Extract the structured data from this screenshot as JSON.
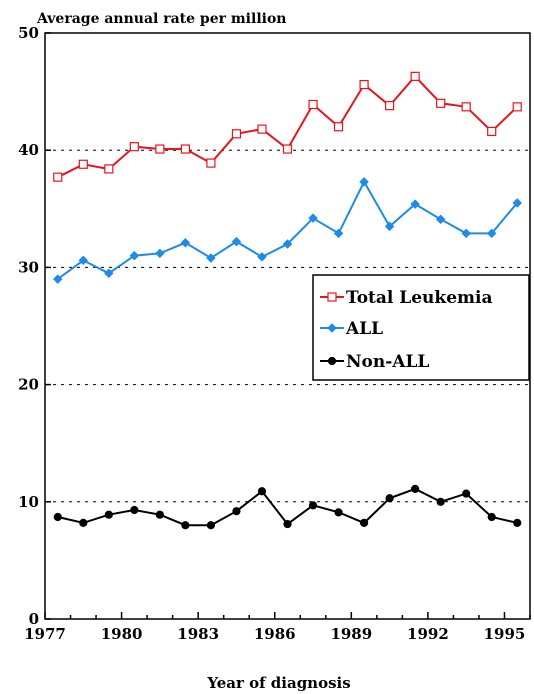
{
  "chart_data": {
    "type": "line",
    "title": "",
    "ylabel": "Average annual rate per million",
    "xlabel": "Year of diagnosis",
    "xlim": [
      1977,
      1996
    ],
    "ylim": [
      0,
      50
    ],
    "x_ticks": [
      "1977",
      "1980",
      "1983",
      "1986",
      "1989",
      "1992",
      "1995"
    ],
    "y_ticks": [
      "0",
      "10",
      "20",
      "30",
      "40",
      "50"
    ],
    "grid": "dashed horizontal lines at 10, 20, 30, 40",
    "legend_position": "right, mid-height",
    "x": [
      1977.5,
      1978.5,
      1979.5,
      1980.5,
      1981.5,
      1982.5,
      1983.5,
      1984.5,
      1985.5,
      1986.5,
      1987.5,
      1988.5,
      1989.5,
      1990.5,
      1991.5,
      1992.5,
      1993.5,
      1994.5,
      1995.5
    ],
    "series": [
      {
        "name": "Total Leukemia",
        "color": "#e8141c",
        "marker": "open-square",
        "values": [
          37.7,
          38.8,
          38.4,
          40.3,
          40.1,
          40.1,
          38.9,
          41.4,
          41.8,
          40.1,
          43.9,
          42.0,
          45.6,
          43.8,
          46.3,
          44.0,
          43.7,
          41.6,
          43.7
        ]
      },
      {
        "name": "ALL",
        "color": "#1e8be8",
        "marker": "diamond",
        "values": [
          29.0,
          30.6,
          29.5,
          31.0,
          31.2,
          32.1,
          30.8,
          32.2,
          30.9,
          32.0,
          34.2,
          32.9,
          37.3,
          33.5,
          35.4,
          34.1,
          32.9,
          32.9,
          35.5
        ]
      },
      {
        "name": "Non-ALL",
        "color": "#000000",
        "marker": "filled-circle",
        "values": [
          8.7,
          8.2,
          8.9,
          9.3,
          8.9,
          8.0,
          8.0,
          9.2,
          10.9,
          8.1,
          9.7,
          9.1,
          8.2,
          10.3,
          11.1,
          10.0,
          10.7,
          8.7,
          8.2
        ]
      }
    ]
  }
}
